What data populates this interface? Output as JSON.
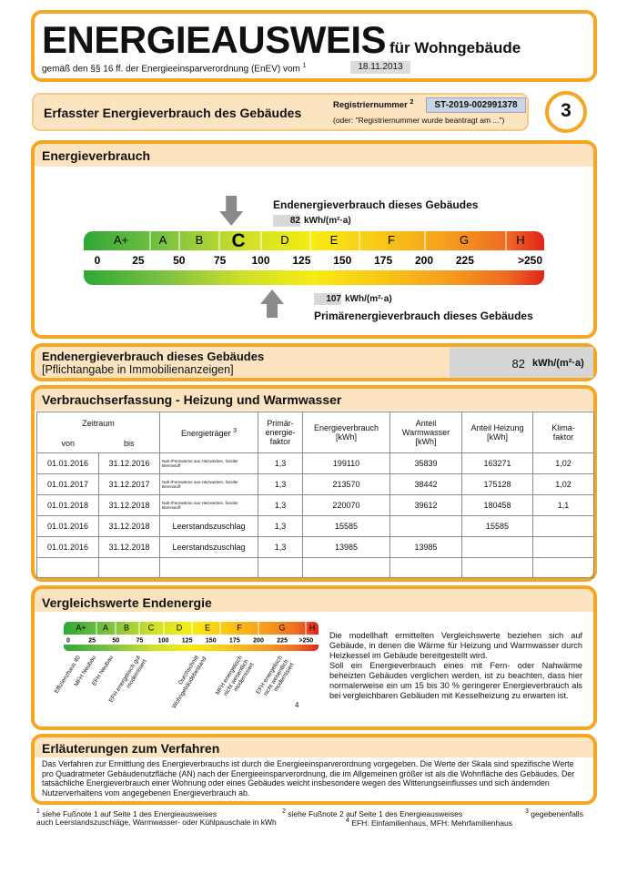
{
  "header": {
    "title": "ENERGIEAUSWEIS",
    "subtitle": "für Wohngebäude",
    "legal": "gemäß den §§ 16 ff. der Energieeinsparverordnung (EnEV) vom",
    "legal_note": "1",
    "date": "18.11.2013"
  },
  "registration": {
    "heading": "Erfasster Energieverbrauch des Gebäudes",
    "label": "Registriernummer",
    "label_note": "2",
    "number": "ST-2019-002991378",
    "alternative": "(oder: \"Registriernummer wurde beantragt am ...\")",
    "page": "3"
  },
  "consumption": {
    "heading": "Energieverbrauch",
    "final_label": "Endenergieverbrauch dieses Gebäudes",
    "final_value": 82,
    "final_unit": "kWh/(m²·a)",
    "primary_value": 107,
    "primary_unit": "kWh/(m²·a)",
    "primary_label": "Primärenergieverbrauch dieses Gebäudes",
    "classes": [
      "A+",
      "A",
      "B",
      "C",
      "D",
      "E",
      "F",
      "G",
      "H"
    ],
    "scale_ticks": [
      0,
      25,
      50,
      75,
      100,
      125,
      150,
      175,
      200,
      225,
      {
        "value": 250,
        "label": ">250"
      }
    ]
  },
  "mandatory": {
    "label": "Endenergieverbrauch dieses Gebäudes",
    "note": "[Pflichtangabe in Immobilienanzeigen]",
    "value": 82,
    "unit": "kWh/(m²·a)"
  },
  "table": {
    "heading": "Verbrauchserfassung - Heizung und Warmwasser",
    "headers": {
      "period": "Zeitraum",
      "from": "von",
      "to": "bis",
      "carrier": "Energieträger",
      "carrier_note": "3",
      "primary_factor": "Primär-\nenergie-\nfaktor",
      "consumption": "Energieverbrauch\n[kWh]",
      "hot_water": "Anteil\nWarmwasser\n[kWh]",
      "heating": "Anteil Heizung\n[kWh]",
      "climate_factor": "Klima-\nfaktor"
    },
    "rows": [
      [
        "01.01.2016",
        "31.12.2016",
        "Nah-/Fernwärme aus Heizwerken, fossiler Brennstoff",
        "1,3",
        "199110",
        "35839",
        "163271",
        "1,02"
      ],
      [
        "01.01.2017",
        "31.12.2017",
        "Nah-/Fernwärme aus Heizwerken, fossiler Brennstoff",
        "1,3",
        "213570",
        "38442",
        "175128",
        "1,02"
      ],
      [
        "01.01.2018",
        "31.12.2018",
        "Nah-/Fernwärme aus Heizwerken, fossiler Brennstoff",
        "1,3",
        "220070",
        "39612",
        "180458",
        "1,1"
      ],
      [
        "01.01.2016",
        "31.12.2018",
        "Leerstandszuschlag",
        "1,3",
        "15585",
        null,
        "15585",
        null
      ],
      [
        "01.01.2016",
        "31.12.2018",
        "Leerstandszuschlag",
        "1,3",
        "13985",
        "13985",
        null,
        null
      ]
    ]
  },
  "comparison": {
    "heading": "Vergleichswerte Endenergie",
    "classes": [
      "A+",
      "A",
      "B",
      "C",
      "D",
      "E",
      "F",
      "G",
      "H"
    ],
    "scale_ticks": [
      0,
      25,
      50,
      75,
      100,
      125,
      150,
      175,
      200,
      225,
      {
        "value": 250,
        "label": ">250"
      }
    ],
    "references": [
      "Effizienzhaus 40",
      "MFH Neubau",
      "EFH Neubau",
      "EFH energetisch gut modernisiert",
      "Durchschnitt Wohngebäudebestand",
      "MFH energetisch nicht wesentlich modernisiert",
      "EFH energetisch nicht wesentlich modernisiert"
    ],
    "note": "4",
    "text": [
      "Die modellhaft ermittelten Vergleichswerte beziehen sich auf Gebäude, in denen die Wärme für Heizung und Warmwasser durch Heizkessel im Gebäude bereitgestellt wird.",
      "Soll ein Energieverbrauch eines mit Fern- oder Nahwärme beheizten Gebäudes verglichen werden, ist zu beachten, dass hier normalerweise ein um 15 bis 30 % geringerer Energieverbrauch als bei vergleichbaren Gebäuden mit Kesselheizung zu erwarten ist."
    ]
  },
  "explanation": {
    "heading": "Erläuterungen zum Verfahren",
    "text": "Das Verfahren zur Ermittlung des Energieverbrauchs ist durch die Energieeinsparverordnung vorgegeben. Die Werte der Skala sind spezifische Werte pro Quadratmeter Gebäudenutzfläche (AN) nach der Energieeinsparverordnung, die im Allgemeinen größer ist als die Wohnfläche des Gebäudes. Der tatsächliche Energieverbrauch einer Wohnung oder eines Gebäudes weicht insbesondere wegen des Witterungseinflusses und sich ändernden Nutzerverhaltens vom angegebenen Energieverbrauch ab."
  },
  "footnotes": [
    {
      "mark": "1",
      "text": [
        "siehe Fußnote 1 auf Seite 1 des Energieausweises"
      ]
    },
    {
      "mark": "2",
      "text": [
        "siehe Fußnote 2 auf Seite 1 des Energieausweises"
      ]
    },
    {
      "mark": "3",
      "text": [
        "gegebenenfalls",
        "auch Leerstandszuschläge, Warmwasser- oder Kühlpauschale in kWh"
      ]
    },
    {
      "mark": "4",
      "text": [
        "EFH: Einfamilienhaus, MFH: Mehrfamilienhaus"
      ]
    }
  ]
}
